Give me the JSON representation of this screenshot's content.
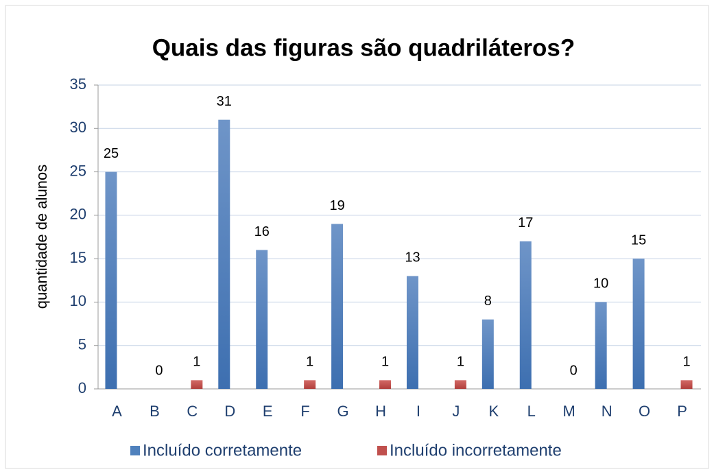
{
  "chart_data": {
    "type": "bar",
    "title": "Quais das figuras são quadriláteros?",
    "y_label": "quantidade de alunos",
    "categories": [
      "A",
      "B",
      "C",
      "D",
      "E",
      "F",
      "G",
      "H",
      "I",
      "J",
      "K",
      "L",
      "M",
      "N",
      "O",
      "P"
    ],
    "series": [
      {
        "name": "Incluído corretamente",
        "color": "#4f81bd",
        "values": [
          25,
          null,
          null,
          31,
          16,
          null,
          19,
          null,
          13,
          null,
          8,
          17,
          null,
          10,
          15,
          null
        ]
      },
      {
        "name": "Incluído incorretamente",
        "color": "#c0504d",
        "values": [
          null,
          0,
          1,
          null,
          null,
          1,
          null,
          1,
          null,
          1,
          null,
          null,
          0,
          null,
          null,
          1
        ]
      }
    ],
    "ylim": [
      0,
      35
    ],
    "yticks": [
      0,
      5,
      10,
      15,
      20,
      25,
      30,
      35
    ],
    "grid": true,
    "legend": "bottom"
  }
}
